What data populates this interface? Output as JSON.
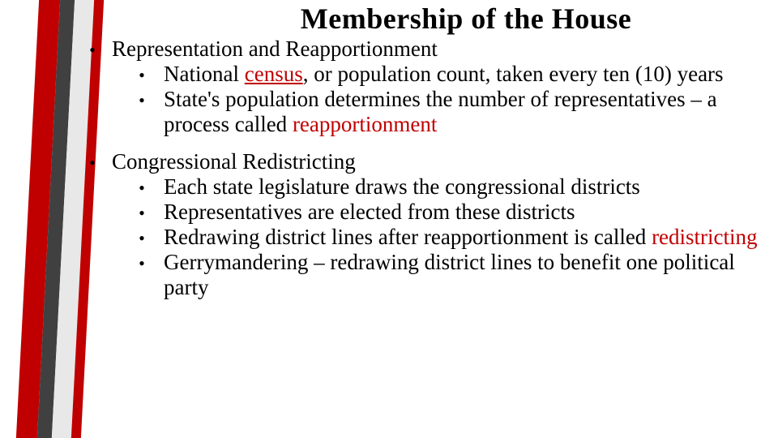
{
  "title": "Membership of the House",
  "colors": {
    "keyword": "#c00000",
    "text": "#000000",
    "stripe_red": "#c00000",
    "stripe_dark": "#404040",
    "stripe_light": "#e8e8e8",
    "background": "#ffffff"
  },
  "typography": {
    "family": "Gabriola / Candara style serif",
    "title_size_pt": 28,
    "body_size_pt": 20,
    "title_weight": 600,
    "body_weight": 400
  },
  "sections": [
    {
      "heading": "Representation and Reapportionment",
      "items": [
        {
          "segments": [
            {
              "t": "National "
            },
            {
              "t": "census",
              "keyword": true,
              "underline": true
            },
            {
              "t": ", or population count, taken every ten (10) years"
            }
          ]
        },
        {
          "segments": [
            {
              "t": "State's population determines the number of representatives – a process called "
            },
            {
              "t": "reapportionment",
              "keyword": true
            }
          ]
        }
      ]
    },
    {
      "heading": "Congressional Redistricting",
      "items": [
        {
          "segments": [
            {
              "t": "Each state legislature draws the congressional districts"
            }
          ]
        },
        {
          "segments": [
            {
              "t": "Representatives are elected from these districts"
            }
          ]
        },
        {
          "segments": [
            {
              "t": "Redrawing district lines after reapportionment is called "
            },
            {
              "t": "redistricting",
              "keyword": true
            }
          ]
        },
        {
          "segments": [
            {
              "t": "Gerrymandering – redrawing district lines to benefit one political party"
            }
          ]
        }
      ]
    }
  ]
}
